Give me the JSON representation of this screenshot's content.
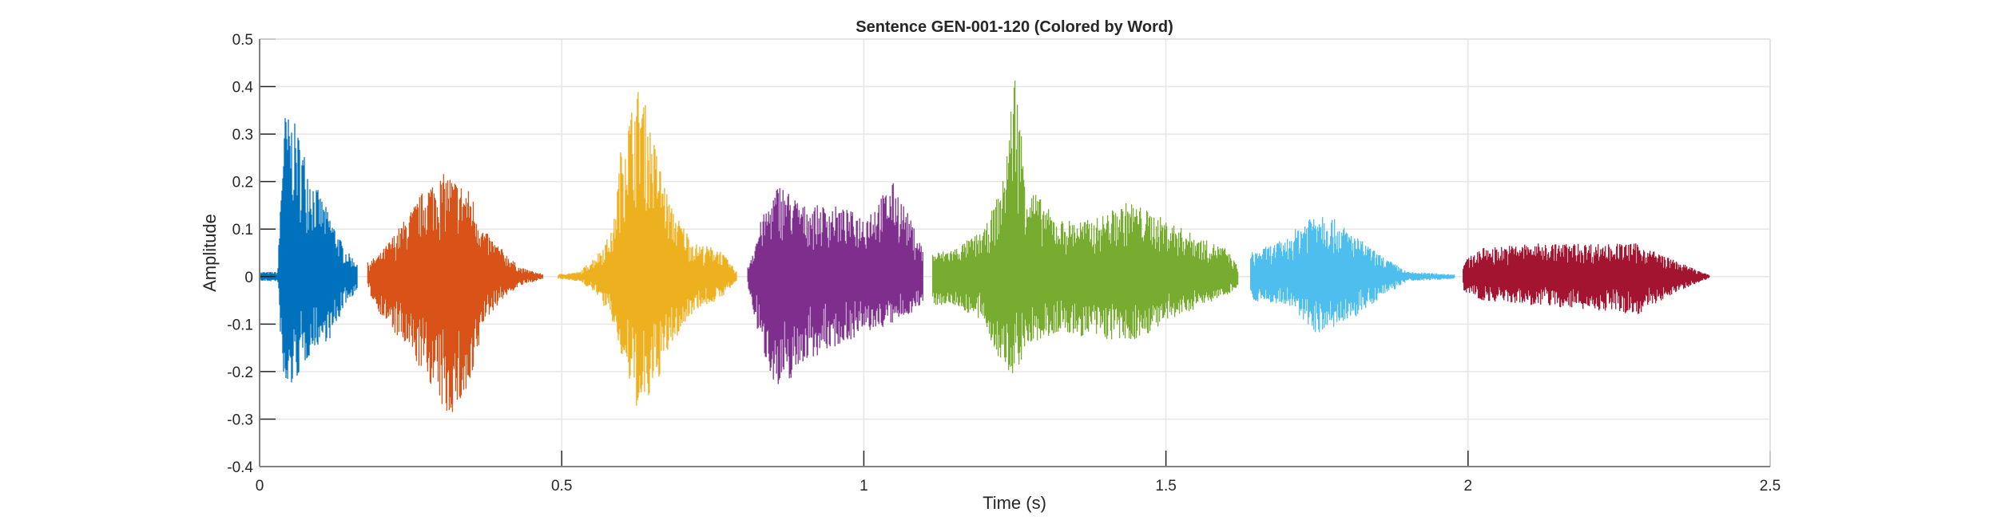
{
  "chart_data": {
    "type": "line",
    "title": "Sentence GEN-001-120 (Colored by Word)",
    "xlabel": "Time (s)",
    "ylabel": "Amplitude",
    "xlim": [
      0,
      2.5
    ],
    "ylim": [
      -0.4,
      0.5
    ],
    "xticks": [
      0,
      0.5,
      1,
      1.5,
      2,
      2.5
    ],
    "xtick_labels": [
      "0",
      "0.5",
      "1",
      "1.5",
      "2",
      "2.5"
    ],
    "yticks": [
      -0.4,
      -0.3,
      -0.2,
      -0.1,
      0,
      0.1,
      0.2,
      0.3,
      0.4,
      0.5
    ],
    "ytick_labels": [
      "-0.4",
      "-0.3",
      "-0.2",
      "-0.1",
      "0",
      "0.1",
      "0.2",
      "0.3",
      "0.4",
      "0.5"
    ],
    "grid": true,
    "segments": [
      {
        "color": "#0072BD",
        "envelope": [
          [
            0,
            0.01,
            -0.01
          ],
          [
            0.03,
            0.01,
            -0.01
          ],
          [
            0.04,
            0.35,
            -0.26
          ],
          [
            0.06,
            0.32,
            -0.22
          ],
          [
            0.09,
            0.2,
            -0.15
          ],
          [
            0.12,
            0.12,
            -0.13
          ],
          [
            0.14,
            0.06,
            -0.06
          ],
          [
            0.162,
            0.03,
            -0.03
          ]
        ]
      },
      {
        "color": "#D95319",
        "envelope": [
          [
            0.179,
            0.03,
            -0.03
          ],
          [
            0.2,
            0.05,
            -0.08
          ],
          [
            0.24,
            0.12,
            -0.15
          ],
          [
            0.28,
            0.2,
            -0.22
          ],
          [
            0.31,
            0.22,
            -0.3
          ],
          [
            0.35,
            0.18,
            -0.25
          ],
          [
            0.37,
            0.1,
            -0.1
          ],
          [
            0.4,
            0.06,
            -0.05
          ],
          [
            0.43,
            0.02,
            -0.02
          ],
          [
            0.469,
            0.005,
            -0.005
          ]
        ]
      },
      {
        "color": "#EDB120",
        "envelope": [
          [
            0.493,
            0.005,
            -0.005
          ],
          [
            0.53,
            0.01,
            -0.01
          ],
          [
            0.56,
            0.05,
            -0.04
          ],
          [
            0.585,
            0.1,
            -0.1
          ],
          [
            0.6,
            0.3,
            -0.18
          ],
          [
            0.63,
            0.41,
            -0.3
          ],
          [
            0.65,
            0.3,
            -0.25
          ],
          [
            0.68,
            0.15,
            -0.15
          ],
          [
            0.72,
            0.07,
            -0.07
          ],
          [
            0.76,
            0.06,
            -0.05
          ],
          [
            0.79,
            0.01,
            -0.01
          ]
        ]
      },
      {
        "color": "#7E2F8E",
        "envelope": [
          [
            0.808,
            0.02,
            -0.02
          ],
          [
            0.83,
            0.12,
            -0.15
          ],
          [
            0.86,
            0.2,
            -0.25
          ],
          [
            0.9,
            0.15,
            -0.18
          ],
          [
            0.95,
            0.15,
            -0.15
          ],
          [
            1.0,
            0.13,
            -0.12
          ],
          [
            1.05,
            0.2,
            -0.1
          ],
          [
            1.098,
            0.06,
            -0.06
          ]
        ]
      },
      {
        "color": "#77AC30",
        "envelope": [
          [
            1.114,
            0.05,
            -0.06
          ],
          [
            1.15,
            0.06,
            -0.06
          ],
          [
            1.2,
            0.1,
            -0.1
          ],
          [
            1.23,
            0.2,
            -0.2
          ],
          [
            1.25,
            0.44,
            -0.21
          ],
          [
            1.27,
            0.2,
            -0.15
          ],
          [
            1.32,
            0.12,
            -0.12
          ],
          [
            1.38,
            0.12,
            -0.13
          ],
          [
            1.44,
            0.16,
            -0.14
          ],
          [
            1.5,
            0.12,
            -0.1
          ],
          [
            1.56,
            0.08,
            -0.06
          ],
          [
            1.6,
            0.06,
            -0.04
          ],
          [
            1.62,
            0.02,
            -0.02
          ]
        ]
      },
      {
        "color": "#4DBEEE",
        "envelope": [
          [
            1.639,
            0.05,
            -0.05
          ],
          [
            1.7,
            0.08,
            -0.06
          ],
          [
            1.75,
            0.15,
            -0.12
          ],
          [
            1.8,
            0.1,
            -0.1
          ],
          [
            1.85,
            0.05,
            -0.05
          ],
          [
            1.9,
            0.01,
            -0.01
          ],
          [
            1.978,
            0.005,
            -0.005
          ]
        ]
      },
      {
        "color": "#A2142F",
        "envelope": [
          [
            1.992,
            0.03,
            -0.03
          ],
          [
            2.02,
            0.06,
            -0.05
          ],
          [
            2.1,
            0.07,
            -0.06
          ],
          [
            2.2,
            0.07,
            -0.07
          ],
          [
            2.28,
            0.07,
            -0.08
          ],
          [
            2.35,
            0.03,
            -0.03
          ],
          [
            2.4,
            0.003,
            -0.003
          ]
        ]
      }
    ]
  }
}
